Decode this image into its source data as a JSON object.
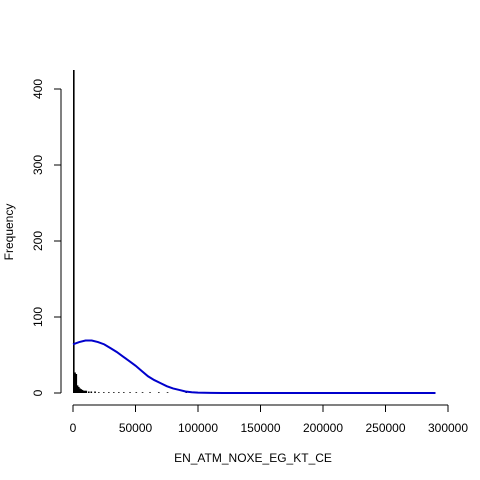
{
  "chart_data": {
    "type": "bar",
    "title": "",
    "xlabel": "EN_ATM_NOXE_EG_KT_CE",
    "ylabel": "Frequency",
    "xlim": [
      0,
      300000
    ],
    "ylim": [
      0,
      425
    ],
    "x_ticks": [
      0,
      50000,
      100000,
      150000,
      200000,
      250000,
      300000
    ],
    "y_ticks": [
      0,
      100,
      200,
      300,
      400
    ],
    "grid": false,
    "bin_width": 1000,
    "bins": [
      {
        "x": 0,
        "count": 425
      },
      {
        "x": 1000,
        "count": 27
      },
      {
        "x": 2000,
        "count": 25
      },
      {
        "x": 3000,
        "count": 10
      },
      {
        "x": 4000,
        "count": 8
      },
      {
        "x": 5000,
        "count": 6
      },
      {
        "x": 6000,
        "count": 5
      },
      {
        "x": 7000,
        "count": 4
      },
      {
        "x": 8000,
        "count": 3
      },
      {
        "x": 9000,
        "count": 3
      },
      {
        "x": 10000,
        "count": 3
      },
      {
        "x": 12000,
        "count": 2
      },
      {
        "x": 14000,
        "count": 2
      },
      {
        "x": 17000,
        "count": 2
      },
      {
        "x": 20000,
        "count": 1
      },
      {
        "x": 24000,
        "count": 1
      },
      {
        "x": 28000,
        "count": 1
      },
      {
        "x": 32000,
        "count": 1
      },
      {
        "x": 36000,
        "count": 1
      },
      {
        "x": 40000,
        "count": 1
      },
      {
        "x": 45000,
        "count": 1
      },
      {
        "x": 50000,
        "count": 1
      },
      {
        "x": 55000,
        "count": 1
      },
      {
        "x": 61000,
        "count": 1
      },
      {
        "x": 68000,
        "count": 1
      },
      {
        "x": 75000,
        "count": 1
      },
      {
        "x": 90000,
        "count": 1
      }
    ],
    "density_curve": {
      "color": "#0000cc",
      "x": [
        0,
        5000,
        10000,
        15000,
        20000,
        25000,
        30000,
        35000,
        40000,
        45000,
        50000,
        55000,
        60000,
        65000,
        70000,
        75000,
        80000,
        85000,
        90000,
        95000,
        100000,
        110000,
        120000,
        150000,
        200000,
        250000,
        290000
      ],
      "y": [
        64,
        67,
        69,
        69,
        67,
        64,
        59,
        54,
        48,
        42,
        36,
        29,
        22,
        17,
        13,
        9,
        6,
        4,
        2,
        1,
        0.5,
        0.2,
        0,
        0,
        0,
        0,
        0
      ]
    }
  }
}
